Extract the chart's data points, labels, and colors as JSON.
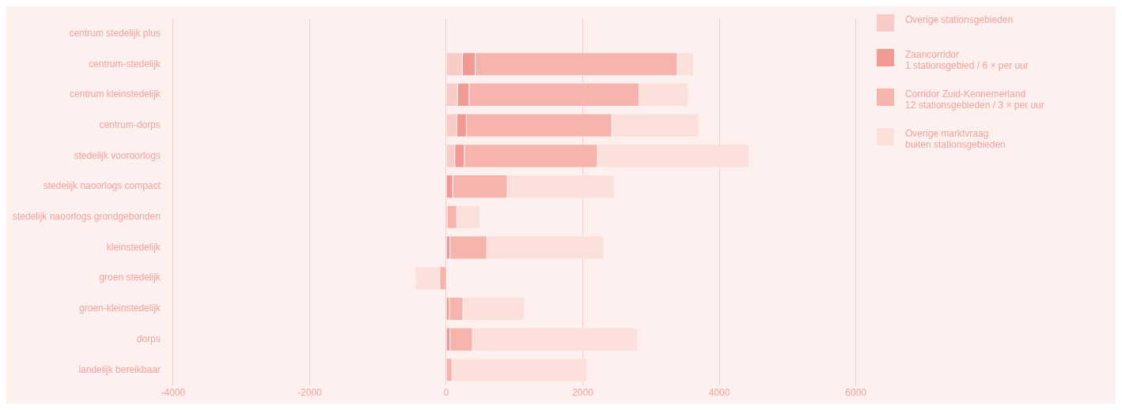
{
  "chart_data": {
    "type": "bar",
    "orientation": "horizontal",
    "stacked": true,
    "categories": [
      "centrum stedelijk plus",
      "centrum-stedelijk",
      "centrum kleinstedelijk",
      "centrum-dorps",
      "stedelijk vooroorlogs",
      "stedelijk naoorlogs compact",
      "stedelijk naoorlogs grondgebonden",
      "kleinstedelijk",
      "groen stedelijk",
      "groen-kleinstedelijk",
      "dorps",
      "landelijk bereikbaar"
    ],
    "series": [
      {
        "name": "Overige stationsgebieden",
        "color": "#f8cbc6",
        "values": [
          null,
          240,
          170,
          160,
          130,
          null,
          null,
          null,
          null,
          null,
          null,
          null
        ]
      },
      {
        "name": "Zaancorridor\n1 stationsgebied / 6 × per uur",
        "color": "#f19a93",
        "values": [
          null,
          190,
          170,
          140,
          140,
          100,
          20,
          60,
          null,
          50,
          60,
          null
        ]
      },
      {
        "name": "Corridor Zuid-Kennemerland\n12 stationsgebieden / 3 × per uur",
        "color": "#f5b4ad",
        "values": [
          null,
          2960,
          2490,
          2130,
          1950,
          800,
          140,
          540,
          -100,
          200,
          330,
          90
        ]
      },
      {
        "name": "Overige marktvraag\nbuiten stationsgebieden",
        "color": "#fce0dc",
        "values": [
          null,
          240,
          720,
          1280,
          2220,
          1570,
          340,
          1710,
          -360,
          900,
          2420,
          1980
        ]
      }
    ],
    "xlim": [
      -4000,
      6000
    ],
    "xticks": [
      -4000,
      -2000,
      0,
      2000,
      4000,
      6000
    ],
    "grid": "x",
    "legend": "right"
  }
}
